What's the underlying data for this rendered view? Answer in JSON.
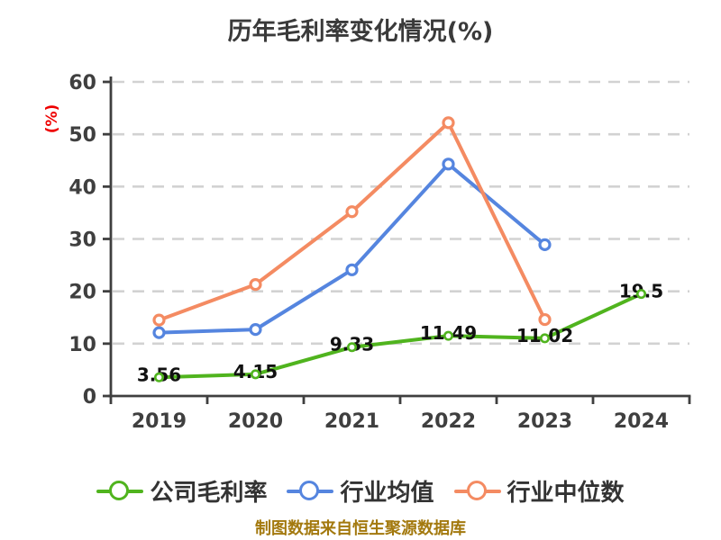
{
  "title": "历年毛利率变化情况(%)",
  "y_axis_label": "(%)",
  "footer_note": "制图数据来自恒生聚源数据库",
  "colors": {
    "axis": "#3f3f3f",
    "grid": "#d2d2d2",
    "title": "#3a3a3a",
    "tick_label": "#3f3f3f",
    "data_label": "#111111",
    "y_axis_label_red": "#ee0000",
    "footer": "#a3790e",
    "legend_text": "#333333",
    "marker_fill": "#ffffff",
    "series_company": "#50b41e",
    "series_industry_mean": "#5585df",
    "series_industry_median": "#f48b62"
  },
  "chart_data": {
    "type": "line",
    "title": "历年毛利率变化情况(%)",
    "categories": [
      "2019",
      "2020",
      "2021",
      "2022",
      "2023",
      "2024"
    ],
    "series": [
      {
        "name": "公司毛利率",
        "color": "#50b41e",
        "values": [
          3.56,
          4.15,
          9.33,
          11.49,
          11.02,
          19.5
        ],
        "point_labels": [
          "3.56",
          "4.15",
          "9.33",
          "11.49",
          "11.02",
          "19.5"
        ]
      },
      {
        "name": "行业均值",
        "color": "#5585df",
        "values": [
          12.1,
          12.7,
          24.1,
          44.3,
          28.9,
          null
        ]
      },
      {
        "name": "行业中位数",
        "color": "#f48b62",
        "values": [
          14.5,
          21.3,
          35.2,
          52.2,
          14.6,
          null
        ]
      }
    ],
    "xlabel": "",
    "ylabel": "(%)",
    "ylim": [
      0,
      60
    ],
    "yticks": [
      0,
      10,
      20,
      30,
      40,
      50,
      60
    ],
    "grid": "horizontal-dashed",
    "legend_position": "bottom",
    "marker": "circle-white-fill"
  }
}
